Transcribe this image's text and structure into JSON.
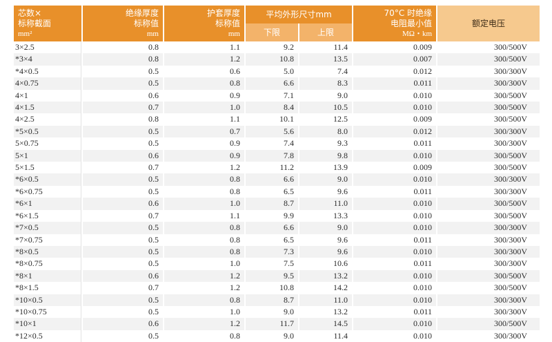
{
  "headers": {
    "cores": "芯数×",
    "cross_section": "标称截面",
    "cross_section_unit": "mm²",
    "insulation": "绝缘厚度",
    "insulation_sub": "标称值",
    "insulation_unit": "mm",
    "sheath": "护套厚度",
    "sheath_sub": "标称值",
    "sheath_unit": "mm",
    "outer_dim": "平均外形尺寸mm",
    "lower": "下限",
    "upper": "上限",
    "resistance": "70°C 时绝缘",
    "resistance_sub": "电阻最小值",
    "resistance_unit": "MΩ・km",
    "voltage": "额定电压"
  },
  "colors": {
    "header_dark": "#e8902a",
    "header_light": "#f3b36a",
    "row_shade": "#f2f2f2"
  },
  "rows": [
    {
      "spec": "3×2.5",
      "ins": "0.8",
      "sheath": "1.1",
      "lo": "9.2",
      "hi": "11.4",
      "res": "0.009",
      "volt": "300/500V"
    },
    {
      "spec": "*3×4",
      "ins": "0.8",
      "sheath": "1.2",
      "lo": "10.8",
      "hi": "13.5",
      "res": "0.007",
      "volt": "300/500V"
    },
    {
      "spec": "*4×0.5",
      "ins": "0.5",
      "sheath": "0.6",
      "lo": "5.0",
      "hi": "7.4",
      "res": "0.012",
      "volt": "300/300V"
    },
    {
      "spec": "4×0.75",
      "ins": "0.5",
      "sheath": "0.8",
      "lo": "6.6",
      "hi": "8.3",
      "res": "0.011",
      "volt": "300/300V"
    },
    {
      "spec": "4×1",
      "ins": "0.6",
      "sheath": "0.9",
      "lo": "7.1",
      "hi": "9.0",
      "res": "0.010",
      "volt": "300/500V"
    },
    {
      "spec": "4×1.5",
      "ins": "0.7",
      "sheath": "1.0",
      "lo": "8.4",
      "hi": "10.5",
      "res": "0.010",
      "volt": "300/500V"
    },
    {
      "spec": "4×2.5",
      "ins": "0.8",
      "sheath": "1.1",
      "lo": "10.1",
      "hi": "12.5",
      "res": "0.009",
      "volt": "300/500V"
    },
    {
      "spec": "*5×0.5",
      "ins": "0.5",
      "sheath": "0.7",
      "lo": "5.6",
      "hi": "8.0",
      "res": "0.012",
      "volt": "300/300V"
    },
    {
      "spec": "5×0.75",
      "ins": "0.5",
      "sheath": "0.9",
      "lo": "7.4",
      "hi": "9.3",
      "res": "0.011",
      "volt": "300/300V"
    },
    {
      "spec": "5×1",
      "ins": "0.6",
      "sheath": "0.9",
      "lo": "7.8",
      "hi": "9.8",
      "res": "0.010",
      "volt": "300/500V"
    },
    {
      "spec": "5×1.5",
      "ins": "0.7",
      "sheath": "1.2",
      "lo": "11.2",
      "hi": "13.9",
      "res": "0.009",
      "volt": "300/500V"
    },
    {
      "spec": "*6×0.5",
      "ins": "0.5",
      "sheath": "0.8",
      "lo": "6.6",
      "hi": "9.0",
      "res": "0.010",
      "volt": "300/300V"
    },
    {
      "spec": "*6×0.75",
      "ins": "0.5",
      "sheath": "0.8",
      "lo": "6.5",
      "hi": "9.6",
      "res": "0.011",
      "volt": "300/300V"
    },
    {
      "spec": "*6×1",
      "ins": "0.6",
      "sheath": "1.0",
      "lo": "8.7",
      "hi": "11.0",
      "res": "0.010",
      "volt": "300/500V"
    },
    {
      "spec": "*6×1.5",
      "ins": "0.7",
      "sheath": "1.1",
      "lo": "9.9",
      "hi": "13.3",
      "res": "0.010",
      "volt": "300/500V"
    },
    {
      "spec": "*7×0.5",
      "ins": "0.5",
      "sheath": "0.8",
      "lo": "6.6",
      "hi": "9.0",
      "res": "0.010",
      "volt": "300/300V"
    },
    {
      "spec": "*7×0.75",
      "ins": "0.5",
      "sheath": "0.8",
      "lo": "6.5",
      "hi": "9.6",
      "res": "0.011",
      "volt": "300/300V"
    },
    {
      "spec": "*8×0.5",
      "ins": "0.5",
      "sheath": "0.8",
      "lo": "7.3",
      "hi": "9.6",
      "res": "0.010",
      "volt": "300/300V"
    },
    {
      "spec": "*8×0.75",
      "ins": "0.5",
      "sheath": "1.0",
      "lo": "7.5",
      "hi": "10.6",
      "res": "0.011",
      "volt": "300/300V"
    },
    {
      "spec": "*8×1",
      "ins": "0.6",
      "sheath": "1.2",
      "lo": "9.5",
      "hi": "13.2",
      "res": "0.010",
      "volt": "300/500V"
    },
    {
      "spec": "*8×1.5",
      "ins": "0.7",
      "sheath": "1.2",
      "lo": "10.8",
      "hi": "14.2",
      "res": "0.010",
      "volt": "300/500V"
    },
    {
      "spec": "*10×0.5",
      "ins": "0.5",
      "sheath": "0.8",
      "lo": "8.7",
      "hi": "11.0",
      "res": "0.010",
      "volt": "300/300V"
    },
    {
      "spec": "*10×0.75",
      "ins": "0.5",
      "sheath": "1.0",
      "lo": "9.0",
      "hi": "13.2",
      "res": "0.011",
      "volt": "300/300V"
    },
    {
      "spec": "*10×1",
      "ins": "0.6",
      "sheath": "1.2",
      "lo": "11.7",
      "hi": "14.5",
      "res": "0.010",
      "volt": "300/500V"
    },
    {
      "spec": "*12×0.5",
      "ins": "0.5",
      "sheath": "0.8",
      "lo": "9.0",
      "hi": "11.4",
      "res": "0.010",
      "volt": "300/300V"
    }
  ]
}
